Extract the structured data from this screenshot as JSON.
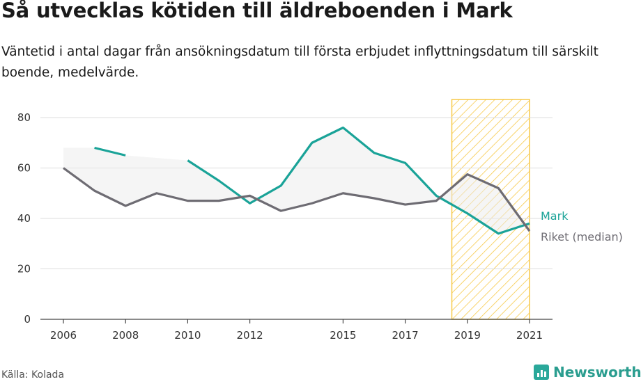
{
  "title": "Så utvecklas kötiden till äldreboenden i Mark",
  "subtitle": "Väntetid i antal dagar från ansökningsdatum till första erbjudet inflyttningsdatum till särskilt boende, medelvärde.",
  "source": "Källa: Kolada",
  "brand": "Newsworthy",
  "colors": {
    "mark": "#1aa398",
    "riket": "#6e6c73",
    "highlight": "#f7c948",
    "grid": "#dddddd"
  },
  "chart_data": {
    "type": "line",
    "title": "Så utvecklas kötiden till äldreboenden i Mark",
    "x_ticks": [
      2006,
      2008,
      2010,
      2012,
      2015,
      2017,
      2019,
      2021
    ],
    "y_ticks": [
      0,
      20,
      40,
      60,
      80
    ],
    "xlim": [
      2006,
      2021
    ],
    "ylim": [
      0,
      80
    ],
    "grid": "horizontal",
    "highlight_range": [
      2018.5,
      2021
    ],
    "series": [
      {
        "name": "Mark",
        "color": "#1aa398",
        "x": [
          2006,
          2007,
          2008,
          2009,
          2010,
          2011,
          2012,
          2013,
          2014,
          2015,
          2016,
          2017,
          2018,
          2019,
          2020,
          2021
        ],
        "y": [
          null,
          68,
          65,
          null,
          63,
          55,
          46,
          53,
          70,
          76,
          66,
          62,
          49,
          42,
          34,
          38
        ]
      },
      {
        "name": "Riket (median)",
        "color": "#6e6c73",
        "x": [
          2006,
          2007,
          2008,
          2009,
          2010,
          2011,
          2012,
          2013,
          2014,
          2015,
          2016,
          2017,
          2018,
          2019,
          2020,
          2021
        ],
        "y": [
          60,
          51,
          45,
          50,
          47,
          47,
          49,
          43,
          46,
          50,
          48,
          45.5,
          47,
          57.5,
          52,
          35
        ]
      }
    ]
  }
}
